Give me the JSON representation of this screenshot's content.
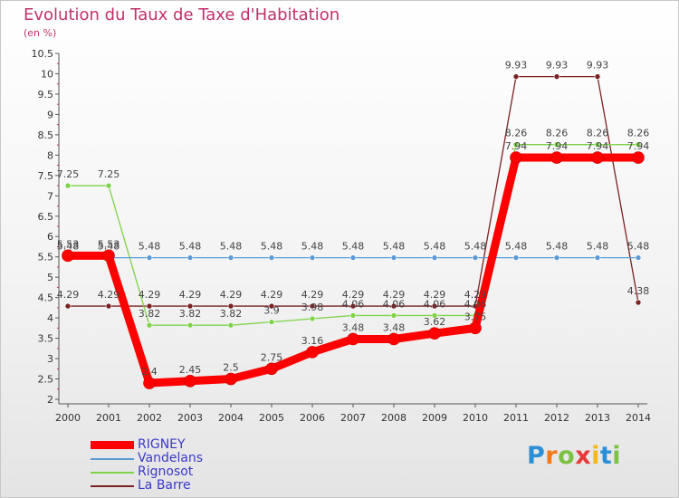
{
  "header": {
    "title": "Evolution du Taux de Taxe d'Habitation",
    "subtitle": "(en %)"
  },
  "brand": {
    "letters": [
      "P",
      "r",
      "o",
      "x",
      "i",
      "t",
      "i"
    ],
    "colors": [
      "#2b8fd8",
      "#f07a1a",
      "#7cc242",
      "#e53a3a",
      "#f2b81e",
      "#2b8fd8",
      "#7cc242"
    ]
  },
  "chart_data": {
    "type": "line",
    "title": "Evolution du Taux de Taxe d'Habitation",
    "subtitle": "(en %)",
    "xlabel": "",
    "ylabel": "(en %)",
    "x": [
      "2000",
      "2001",
      "2002",
      "2003",
      "2004",
      "2005",
      "2006",
      "2007",
      "2008",
      "2009",
      "2010",
      "2011",
      "2012",
      "2013",
      "2014"
    ],
    "ylim": [
      2,
      10.5
    ],
    "yticks": [
      "2",
      "2.5",
      "3",
      "3.5",
      "4",
      "4.5",
      "5",
      "5.5",
      "6",
      "6.5",
      "7",
      "7.5",
      "8",
      "8.5",
      "9",
      "9.5",
      "10",
      "10.5"
    ],
    "grid": false,
    "legend_position": "bottom-left",
    "series": [
      {
        "name": "RIGNEY",
        "color": "#ff0000",
        "emphasis": true,
        "values": [
          5.53,
          5.53,
          2.4,
          2.45,
          2.5,
          2.75,
          3.16,
          3.48,
          3.48,
          3.62,
          3.75,
          7.94,
          7.94,
          7.94,
          7.94
        ],
        "labels": [
          "5.53",
          "5.53",
          "2.4",
          "2.45",
          "2.5",
          "2.75",
          "3.16",
          "3.48",
          "3.48",
          "3.62",
          "3.75",
          "7.94",
          "7.94",
          "7.94",
          "7.94"
        ]
      },
      {
        "name": "Vandelans",
        "color": "#5b9bd5",
        "emphasis": false,
        "values": [
          5.48,
          5.48,
          5.48,
          5.48,
          5.48,
          5.48,
          5.48,
          5.48,
          5.48,
          5.48,
          5.48,
          5.48,
          5.48,
          5.48,
          5.48
        ],
        "labels": [
          "5.48",
          "5.48",
          "5.48",
          "5.48",
          "5.48",
          "5.48",
          "5.48",
          "5.48",
          "5.48",
          "5.48",
          "5.48",
          "5.48",
          "5.48",
          "5.48",
          "5.48"
        ]
      },
      {
        "name": "Rignosot",
        "color": "#7ed348",
        "emphasis": false,
        "values": [
          7.25,
          7.25,
          3.82,
          3.82,
          3.82,
          3.9,
          3.98,
          4.06,
          4.06,
          4.06,
          4.06,
          8.26,
          8.26,
          8.26,
          8.26
        ],
        "labels": [
          "7.25",
          "7.25",
          "3.82",
          "3.82",
          "3.82",
          "3.9",
          "3.98",
          "4.06",
          "4.06",
          "4.06",
          "4.06",
          "8.26",
          "8.26",
          "8.26",
          "8.26"
        ]
      },
      {
        "name": "La Barre",
        "color": "#7b2222",
        "emphasis": false,
        "values": [
          4.29,
          4.29,
          4.29,
          4.29,
          4.29,
          4.29,
          4.29,
          4.29,
          4.29,
          4.29,
          4.29,
          9.93,
          9.93,
          9.93,
          4.38
        ],
        "labels": [
          "4.29",
          "4.29",
          "4.29",
          "4.29",
          "4.29",
          "4.29",
          "4.29",
          "4.29",
          "4.29",
          "4.29",
          "4.29",
          "9.93",
          "9.93",
          "9.93",
          "4.38"
        ]
      }
    ]
  }
}
